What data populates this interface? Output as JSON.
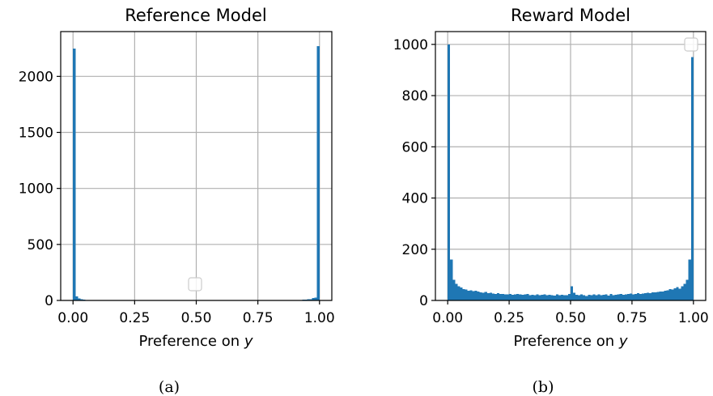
{
  "chart_data": [
    {
      "type": "bar",
      "title": "Reference Model",
      "xlabel": "Preference on y",
      "xlabel_prefix": "Preference on ",
      "xlabel_var": "y",
      "ylabel": "",
      "caption": "(a)",
      "xlim": [
        -0.05,
        1.05
      ],
      "ylim": [
        0,
        2400
      ],
      "xticks": [
        0.0,
        0.25,
        0.5,
        0.75,
        1.0
      ],
      "xtick_labels": [
        "0.00",
        "0.25",
        "0.50",
        "0.75",
        "1.00"
      ],
      "yticks": [
        0,
        500,
        1000,
        1500,
        2000
      ],
      "ytick_labels": [
        "0",
        "500",
        "1000",
        "1500",
        "2000"
      ],
      "grid": true,
      "legend": "lower center, empty",
      "color": "#1f77b4",
      "bin_width": 0.01,
      "counts": [
        2250,
        35,
        18,
        10,
        8,
        5,
        5,
        4,
        3,
        3,
        3,
        3,
        2,
        2,
        2,
        2,
        1,
        1,
        1,
        1,
        1,
        1,
        1,
        1,
        1,
        1,
        1,
        1,
        1,
        1,
        1,
        1,
        1,
        1,
        1,
        1,
        1,
        1,
        1,
        1,
        2,
        1,
        1,
        1,
        1,
        1,
        1,
        1,
        1,
        1,
        2,
        1,
        1,
        1,
        1,
        1,
        1,
        1,
        1,
        1,
        1,
        1,
        1,
        1,
        1,
        1,
        1,
        1,
        1,
        1,
        1,
        1,
        1,
        1,
        1,
        1,
        1,
        1,
        1,
        1,
        1,
        1,
        1,
        1,
        2,
        2,
        2,
        2,
        3,
        3,
        3,
        4,
        5,
        6,
        8,
        10,
        12,
        20,
        25,
        2270
      ]
    },
    {
      "type": "bar",
      "title": "Reward Model",
      "xlabel": "Preference on y",
      "xlabel_prefix": "Preference on ",
      "xlabel_var": "y",
      "ylabel": "",
      "caption": "(b)",
      "xlim": [
        -0.05,
        1.05
      ],
      "ylim": [
        0,
        1050
      ],
      "xticks": [
        0.0,
        0.25,
        0.5,
        0.75,
        1.0
      ],
      "xtick_labels": [
        "0.00",
        "0.25",
        "0.50",
        "0.75",
        "1.00"
      ],
      "yticks": [
        0,
        200,
        400,
        600,
        800,
        1000
      ],
      "ytick_labels": [
        "0",
        "200",
        "400",
        "600",
        "800",
        "1000"
      ],
      "grid": true,
      "legend": "upper right, empty",
      "color": "#1f77b4",
      "bin_width": 0.01,
      "counts": [
        1000,
        160,
        80,
        65,
        55,
        50,
        45,
        42,
        38,
        40,
        36,
        38,
        34,
        32,
        30,
        33,
        28,
        30,
        27,
        26,
        28,
        25,
        26,
        24,
        23,
        26,
        22,
        24,
        25,
        23,
        22,
        24,
        26,
        21,
        22,
        20,
        23,
        21,
        22,
        24,
        20,
        22,
        21,
        19,
        23,
        20,
        22,
        21,
        20,
        25,
        55,
        30,
        22,
        20,
        24,
        21,
        18,
        22,
        20,
        23,
        21,
        24,
        20,
        22,
        23,
        19,
        25,
        21,
        22,
        24,
        26,
        22,
        23,
        25,
        27,
        24,
        26,
        28,
        25,
        27,
        29,
        30,
        28,
        32,
        31,
        33,
        35,
        34,
        38,
        40,
        45,
        42,
        48,
        52,
        46,
        55,
        65,
        80,
        160,
        950
      ]
    }
  ]
}
